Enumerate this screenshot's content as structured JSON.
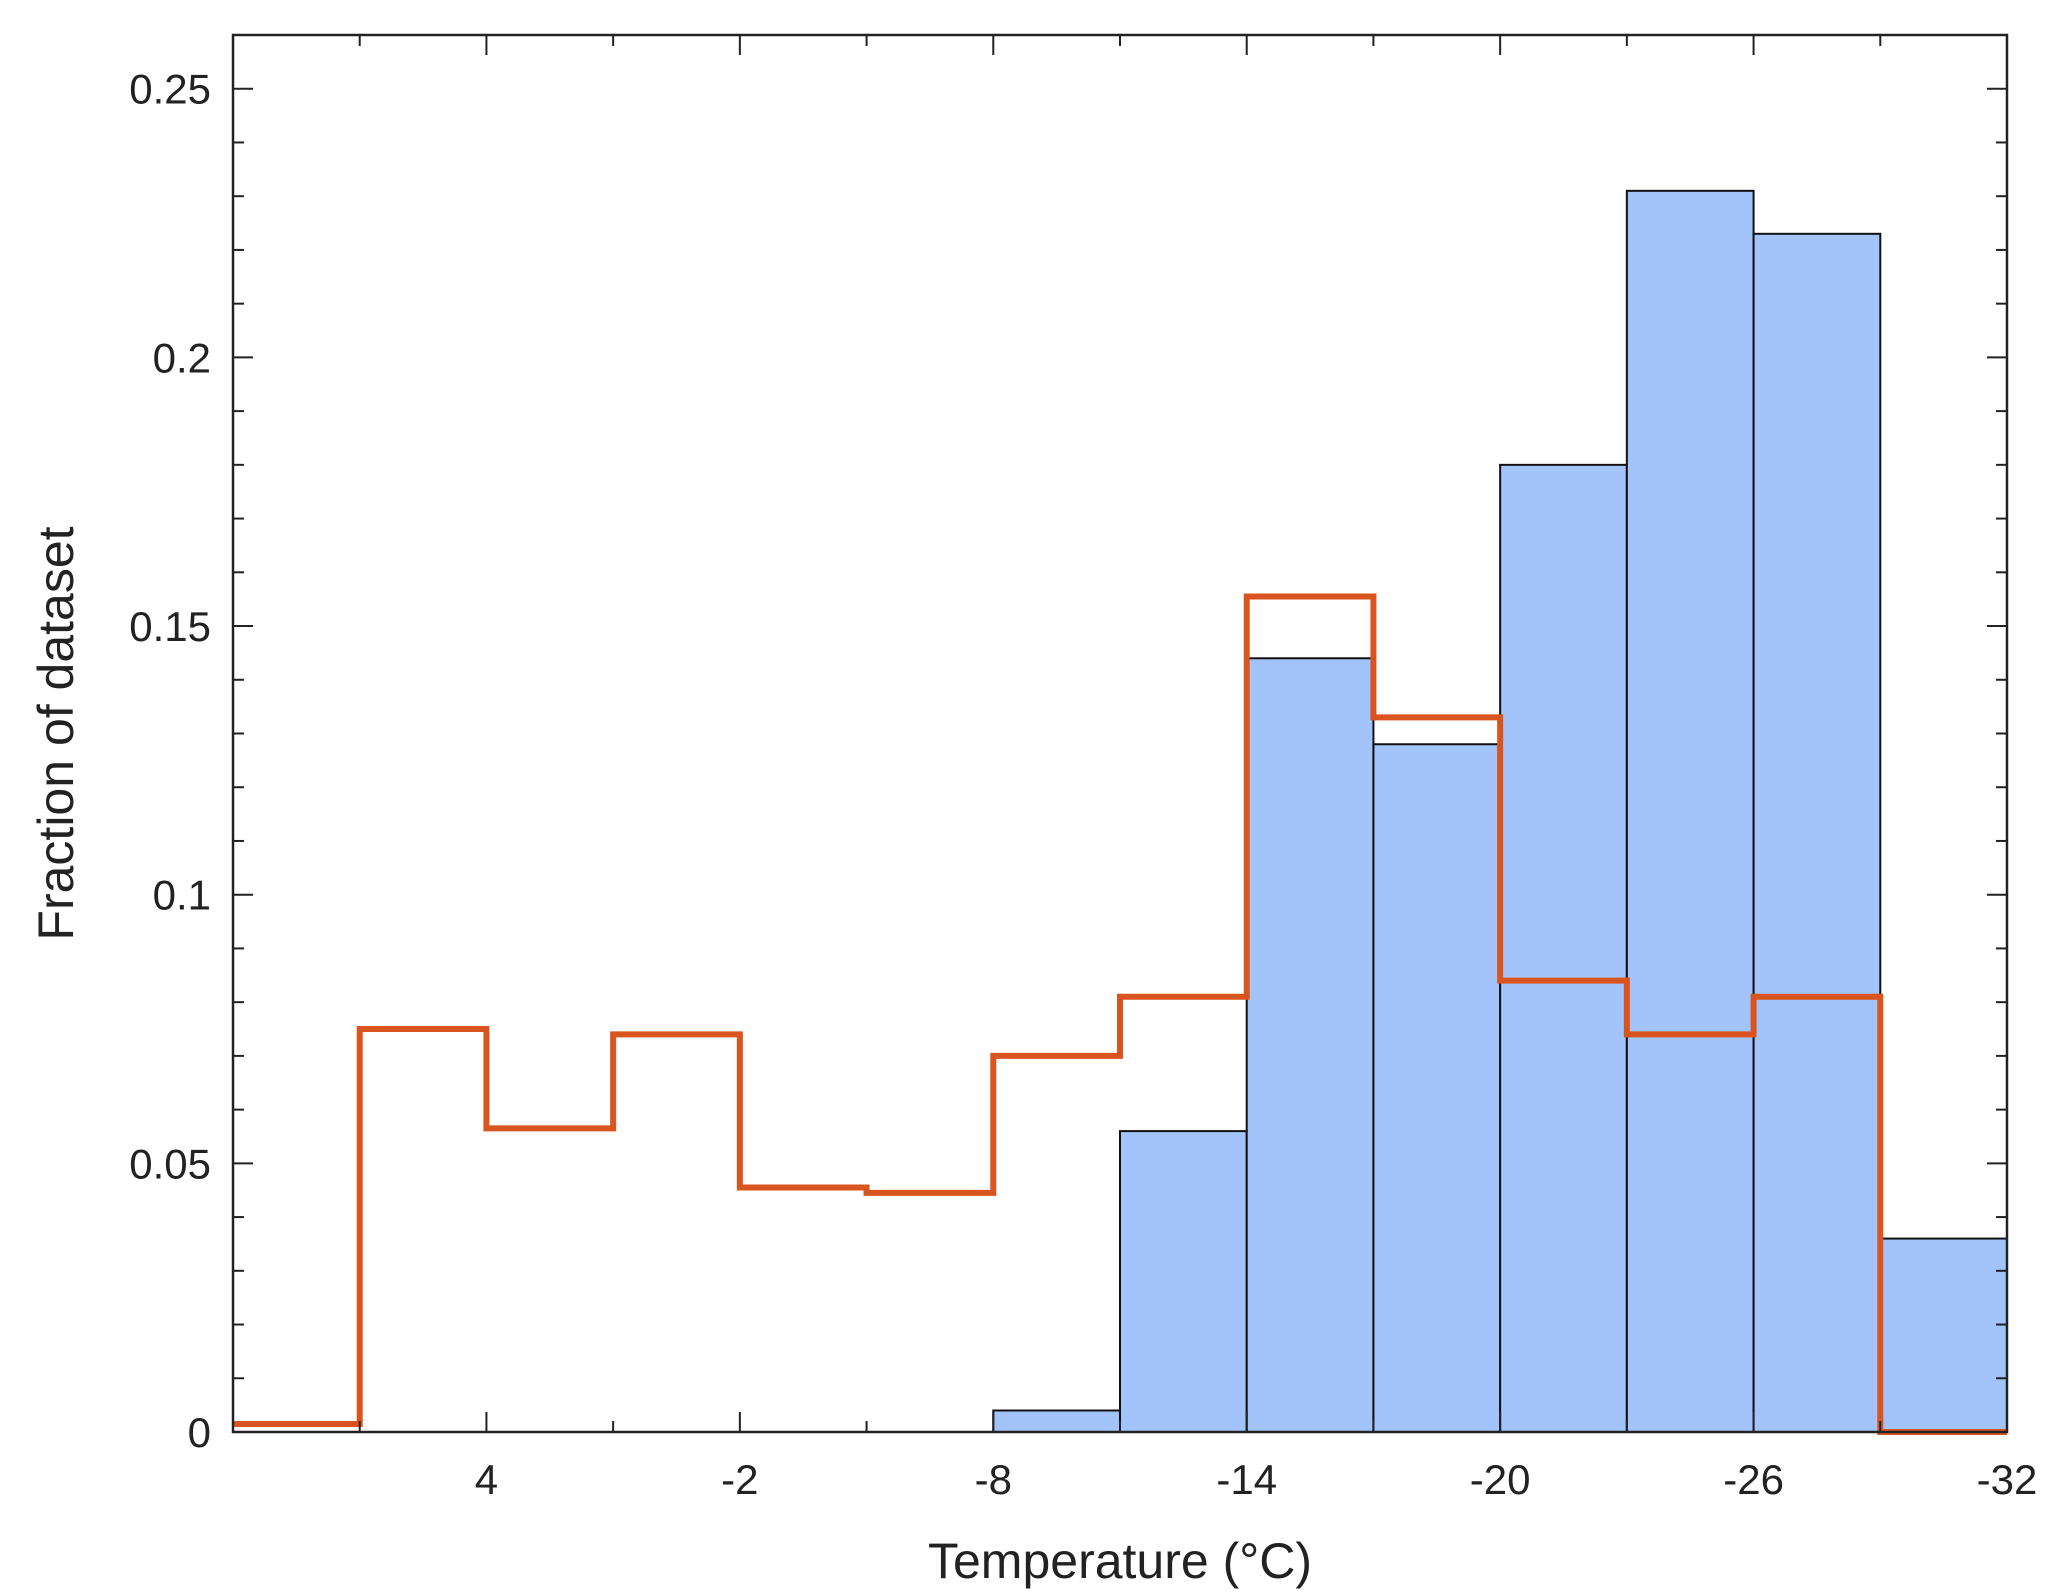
{
  "chart_data": {
    "type": "bar",
    "title": "",
    "xlabel": "Temperature (°C)",
    "ylabel": "Fraction of dataset",
    "x_axis": {
      "reversed": true,
      "range": [
        10,
        -32
      ],
      "bin_width": 3,
      "tick_values": [
        4,
        -2,
        -8,
        -14,
        -20,
        -26,
        -32
      ],
      "tick_labels": [
        "4",
        "-2",
        "-8",
        "-14",
        "-20",
        "-26",
        "-32"
      ]
    },
    "y_axis": {
      "range": [
        0,
        0.26
      ],
      "tick_values": [
        0,
        0.05,
        0.1,
        0.15,
        0.2,
        0.25
      ],
      "tick_labels": [
        "0",
        "0.05",
        "0.1",
        "0.15",
        "0.2",
        "0.25"
      ]
    },
    "grid": false,
    "bin_edges": [
      10,
      7,
      4,
      1,
      -2,
      -5,
      -8,
      -11,
      -14,
      -17,
      -20,
      -23,
      -26,
      -29,
      -32
    ],
    "series": [
      {
        "style": "filled-histogram",
        "color": "#a3c3fb",
        "edge_color": "#111111",
        "values": [
          0,
          0,
          0,
          0,
          0,
          0,
          0.004,
          0.056,
          0.144,
          0.128,
          0.18,
          0.231,
          0.223,
          0.036
        ]
      },
      {
        "style": "step-outline",
        "color": "#d9541e",
        "values": [
          0.0015,
          0.075,
          0.0565,
          0.074,
          0.0455,
          0.0445,
          0.07,
          0.081,
          0.1555,
          0.133,
          0.084,
          0.074,
          0.081,
          0.0
        ]
      }
    ]
  }
}
